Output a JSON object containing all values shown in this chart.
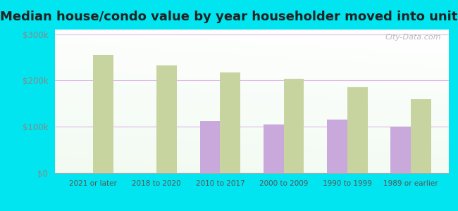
{
  "title": "Median house/condo value by year householder moved into unit",
  "categories": [
    "2021 or later",
    "2018 to 2020",
    "2010 to 2017",
    "2000 to 2009",
    "1990 to 1999",
    "1989 or earlier"
  ],
  "wallace_values": [
    null,
    null,
    113000,
    105000,
    115000,
    100000
  ],
  "nebraska_values": [
    255000,
    232000,
    218000,
    203000,
    185000,
    160000
  ],
  "wallace_color": "#c9a8dc",
  "nebraska_color": "#c8d4a0",
  "background_outer": "#00e5f0",
  "background_inner": "#e8f5e8",
  "grid_color": "#e0b8e8",
  "title_fontsize": 13,
  "ylabel_values": [
    0,
    100000,
    200000,
    300000
  ],
  "ylim": [
    0,
    310000
  ],
  "bar_width": 0.32,
  "watermark": "City-Data.com"
}
